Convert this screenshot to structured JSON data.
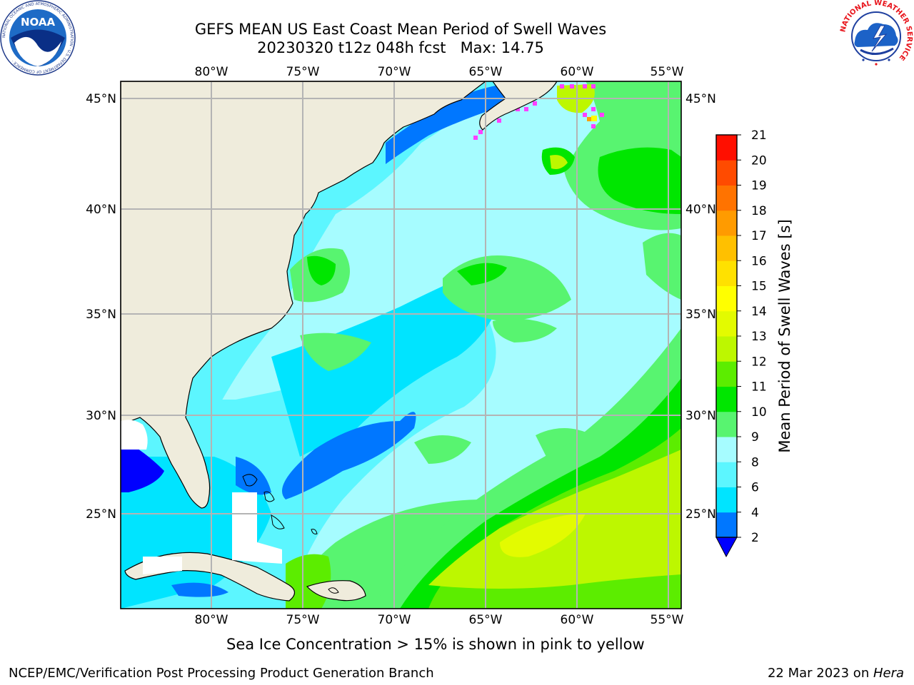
{
  "header": {
    "title_line1": "GEFS MEAN US East Coast Mean Period of Swell Waves",
    "title_line2": "20230320 t12z 048h fcst   Max: 14.75",
    "left_logo": {
      "name": "noaa-logo",
      "text": "NOAA",
      "ring_text": "NATIONAL OCEANIC AND ATMOSPHERIC ADMINISTRATION · U.S. DEPARTMENT OF COMMERCE ·"
    },
    "right_logo": {
      "name": "nws-logo",
      "ring_text": "NATIONAL WEATHER SERVICE",
      "color": "#e8141b"
    }
  },
  "map": {
    "lon_labels": [
      "80°W",
      "75°W",
      "70°W",
      "65°W",
      "60°W",
      "55°W"
    ],
    "lat_labels": [
      "45°N",
      "40°N",
      "35°N",
      "30°N",
      "25°N"
    ],
    "land_color": "#efecdc",
    "grid_color": "#b4b4b4"
  },
  "colorbar": {
    "label": "Mean Period of Swell Waves [s]",
    "ticks": [
      "2",
      "4",
      "6",
      "8",
      "9",
      "10",
      "11",
      "12",
      "13",
      "14",
      "15",
      "16",
      "17",
      "18",
      "19",
      "20",
      "21"
    ],
    "colors": [
      "#0077ff",
      "#00e4ff",
      "#5cf6ff",
      "#a6fcff",
      "#58f470",
      "#00e600",
      "#5ced00",
      "#bdf700",
      "#e3fb00",
      "#ffff00",
      "#ffe100",
      "#ffc000",
      "#ff9b00",
      "#ff7300",
      "#ff4b00",
      "#ff0f00"
    ],
    "under_color": "#0000ff"
  },
  "notes": {
    "sea_ice": "Sea Ice Concentration > 15% is shown in pink to yellow"
  },
  "footer": {
    "left": "NCEP/EMC/Verification Post Processing Product Generation Branch",
    "right_prefix": "22 Mar 2023 on ",
    "right_host": "Hera"
  }
}
